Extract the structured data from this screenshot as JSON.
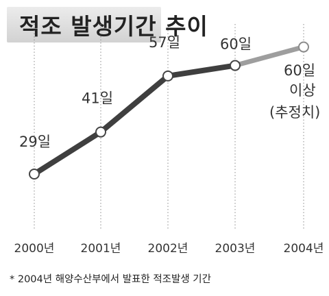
{
  "chart_data": {
    "type": "line",
    "title": "적조 발생기간 추이",
    "x": [
      "2000년",
      "2001년",
      "2002년",
      "2003년",
      "2004년"
    ],
    "series": [
      {
        "name": "",
        "values": [
          29,
          41,
          57,
          60,
          60
        ],
        "estimated_last": true
      }
    ],
    "data_labels": [
      "29일",
      "41일",
      "57일",
      "60일"
    ],
    "annotation_lines": [
      "60일",
      "이상",
      "(추정치)"
    ],
    "footnote": "* 2004년 해양수산부에서 발표한 적조발생 기간",
    "ylim": [
      20,
      65
    ],
    "grid": "vertical dotted lines",
    "colors": {
      "line": "#3f3f3f",
      "estimate_line": "#9e9e9e",
      "marker_fill": "#ffffff",
      "title_bg": "#d9d9d9"
    }
  }
}
